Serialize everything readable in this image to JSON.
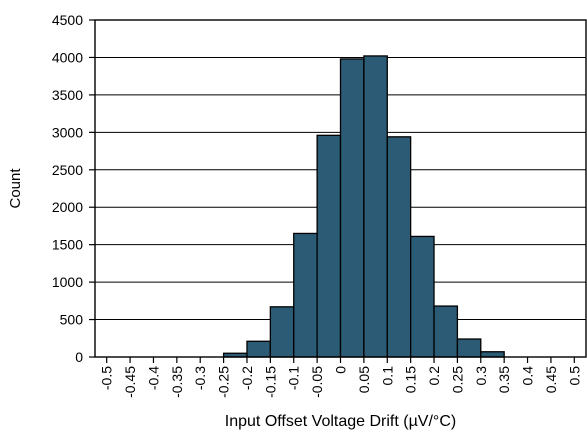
{
  "chart_data": {
    "type": "bar",
    "title": "",
    "xlabel": "Input Offset Voltage Drift (µV/°C)",
    "ylabel": "Count",
    "ylim": [
      0,
      4500
    ],
    "yticks": [
      "0",
      "500",
      "1000",
      "1500",
      "2000",
      "2500",
      "3000",
      "3500",
      "4000",
      "4500"
    ],
    "xticks": [
      "-0.5",
      "-0.45",
      "-0.4",
      "-0.35",
      "-0.3",
      "-0.25",
      "-0.2",
      "-0.15",
      "-0.1",
      "-0.05",
      "0",
      "0.05",
      "0.1",
      "0.15",
      "0.2",
      "0.25",
      "0.3",
      "0.35",
      "0.4",
      "0.45",
      "0.5"
    ],
    "bin_edges": [
      -0.25,
      -0.2,
      -0.15,
      -0.1,
      -0.05,
      0,
      0.05,
      0.1,
      0.15,
      0.2,
      0.25,
      0.3,
      0.35
    ],
    "values": [
      50,
      210,
      670,
      1650,
      2960,
      3980,
      4020,
      2940,
      1610,
      680,
      240,
      70
    ],
    "grid": true,
    "bar_color": "#2b5b75",
    "edge_color": "#000000"
  }
}
